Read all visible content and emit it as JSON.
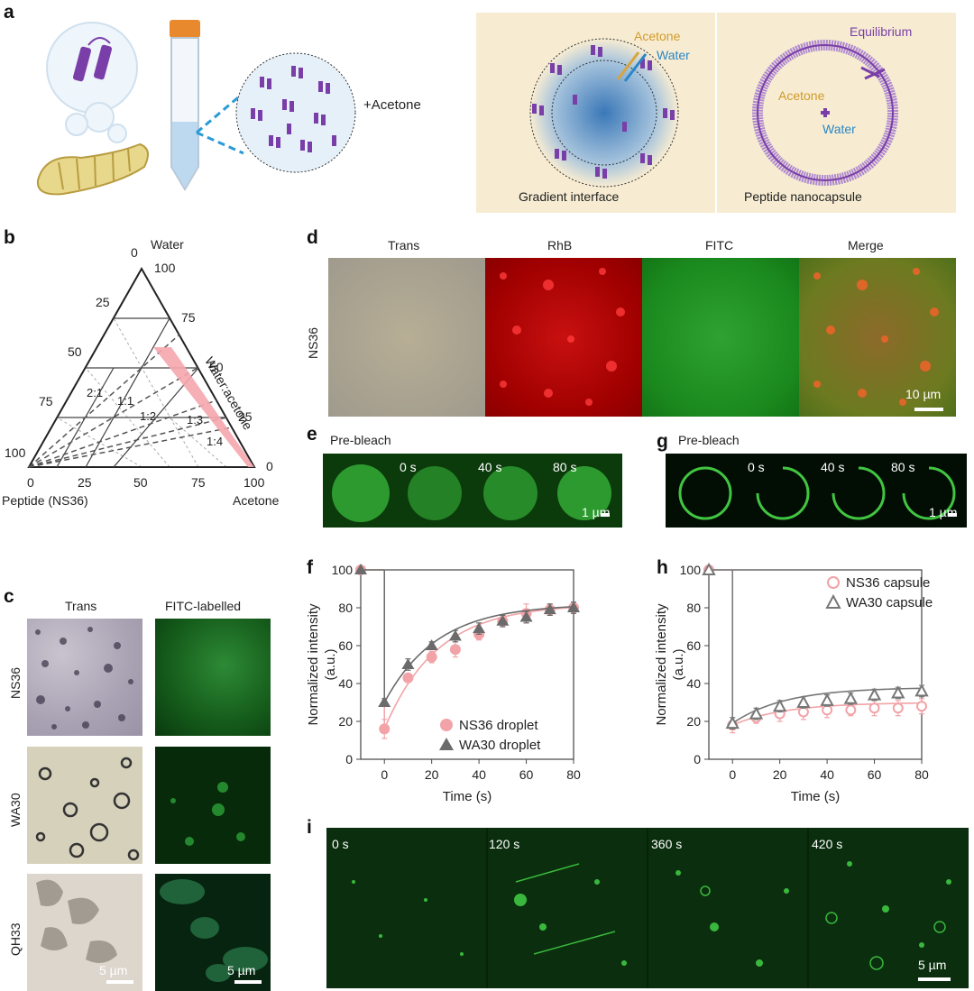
{
  "panels": {
    "a": {
      "label": "a",
      "plus_acetone": "+Acetone",
      "acetone": "Acetone",
      "water": "Water",
      "equilibrium": "Equilibrium",
      "acetone2": "Acetone",
      "water2": "Water",
      "gradient": "Gradient interface",
      "nanocapsule": "Peptide nanocapsule"
    },
    "b": {
      "label": "b",
      "water": "Water",
      "water_acetone": "Water:acetone",
      "peptide": "Peptide (NS36)",
      "acetone": "Acetone",
      "left_ticks": [
        "0",
        "25",
        "50",
        "75",
        "100"
      ],
      "right_ticks": [
        "100",
        "75",
        "50",
        "25",
        "0"
      ],
      "bottom_ticks": [
        "0",
        "25",
        "50",
        "75",
        "100"
      ],
      "ratios": [
        "2:1",
        "1:1",
        "1:2",
        "1:3",
        "1:4"
      ]
    },
    "c": {
      "label": "c",
      "col_trans": "Trans",
      "col_fitc": "FITC-labelled",
      "rows": [
        "NS36",
        "WA30",
        "QH33"
      ],
      "scale": "5 µm"
    },
    "d": {
      "label": "d",
      "cols": [
        "Trans",
        "RhB",
        "FITC",
        "Merge"
      ],
      "row": "NS36",
      "scale": "10 µm"
    },
    "e": {
      "label": "e",
      "prebleach": "Pre-bleach",
      "times": [
        "0 s",
        "40 s",
        "80 s"
      ],
      "scale": "1 µm"
    },
    "g": {
      "label": "g",
      "prebleach": "Pre-bleach",
      "times": [
        "0 s",
        "40 s",
        "80 s"
      ],
      "scale": "1 µm"
    },
    "i": {
      "label": "i",
      "times": [
        "0 s",
        "120 s",
        "360 s",
        "420 s"
      ],
      "scale": "5 µm"
    },
    "f": {
      "label": "f"
    },
    "h": {
      "label": "h"
    }
  },
  "chart_data": [
    {
      "panel": "f",
      "type": "scatter",
      "xlabel": "Time (s)",
      "ylabel": "Normalized intensity (a.u.)",
      "xlim": [
        -10,
        80
      ],
      "ylim": [
        0,
        100
      ],
      "xticks": [
        "0",
        "20",
        "40",
        "60",
        "80"
      ],
      "yticks": [
        "0",
        "20",
        "40",
        "60",
        "80",
        "100"
      ],
      "legend_position": "bottom-right",
      "series": [
        {
          "name": "NS36 droplet",
          "color": "#f2a3a7",
          "marker": "circle",
          "x": [
            -10,
            0,
            10,
            20,
            30,
            40,
            50,
            60,
            70,
            80
          ],
          "y": [
            100,
            16,
            43,
            54,
            58,
            66,
            73,
            77,
            79,
            80
          ],
          "err": [
            0,
            5,
            2,
            3,
            4,
            3,
            3,
            5,
            3,
            3
          ]
        },
        {
          "name": "WA30 droplet",
          "color": "#6b6b6b",
          "marker": "triangle",
          "x": [
            -10,
            0,
            10,
            20,
            30,
            40,
            50,
            60,
            70,
            80
          ],
          "y": [
            100,
            30,
            50,
            60,
            65,
            69,
            73,
            75,
            79,
            80
          ],
          "err": [
            0,
            2,
            3,
            2,
            3,
            3,
            3,
            3,
            3,
            3
          ]
        }
      ]
    },
    {
      "panel": "h",
      "type": "scatter",
      "xlabel": "Time (s)",
      "ylabel": "Normalized intensity (a.u.)",
      "xlim": [
        -10,
        80
      ],
      "ylim": [
        0,
        100
      ],
      "xticks": [
        "0",
        "20",
        "40",
        "60",
        "80"
      ],
      "yticks": [
        "0",
        "20",
        "40",
        "60",
        "80",
        "100"
      ],
      "legend_position": "top-right",
      "series": [
        {
          "name": "NS36 capsule",
          "color": "#f2a3a7",
          "marker": "open-circle",
          "x": [
            -10,
            0,
            10,
            20,
            30,
            40,
            50,
            60,
            70,
            80
          ],
          "y": [
            100,
            18,
            22,
            24,
            25,
            26,
            26,
            27,
            27,
            28
          ],
          "err": [
            0,
            4,
            3,
            4,
            4,
            4,
            3,
            4,
            4,
            4
          ]
        },
        {
          "name": "WA30 capsule",
          "color": "#777777",
          "marker": "open-triangle",
          "x": [
            -10,
            0,
            10,
            20,
            30,
            40,
            50,
            60,
            70,
            80
          ],
          "y": [
            100,
            19,
            24,
            28,
            30,
            31,
            32,
            34,
            35,
            36
          ],
          "err": [
            0,
            3,
            3,
            3,
            3,
            3,
            3,
            3,
            3,
            3
          ]
        }
      ]
    }
  ]
}
